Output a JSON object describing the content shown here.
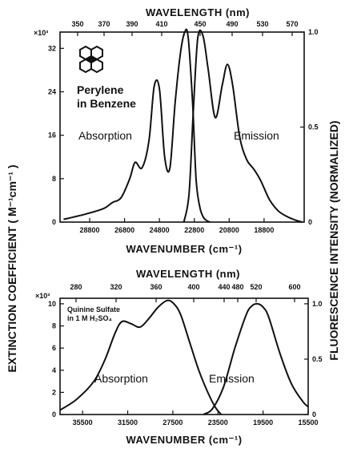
{
  "shared_labels": {
    "left_ylabel": "EXTINCTION  COEFFICIENT  ( M⁻¹cm⁻¹ )",
    "right_ylabel": "FLUORESCENCE  INTENSITY  (NORMALIZED)"
  },
  "chart_data": [
    {
      "type": "line",
      "top_xlabel": "WAVELENGTH (nm)",
      "xlabel": "WAVENUMBER (cm⁻¹)",
      "y_multiplier": "×10³",
      "xlim": [
        30500,
        16500
      ],
      "ylim_left": [
        0,
        35
      ],
      "ylim_right": [
        0,
        1.0
      ],
      "x_ticks": [
        28800,
        26800,
        24800,
        22800,
        20800,
        18800
      ],
      "top_ticks": [
        "350",
        "370",
        "390",
        "410",
        "",
        "450",
        "490",
        "530",
        "570"
      ],
      "y_ticks_left": [
        0,
        8,
        16,
        24,
        32
      ],
      "y_ticks_right": [
        "0",
        "0.5",
        "1.0"
      ],
      "annotations": [
        "Perylene",
        "in Benzene",
        "Absorption",
        "Emission"
      ],
      "series": [
        {
          "name": "Absorption",
          "x": [
            30300,
            29000,
            28000,
            27500,
            27000,
            26500,
            26200,
            25800,
            25400,
            25100,
            24800,
            24500,
            24200,
            23900,
            23600,
            23350,
            23150,
            22900,
            22700,
            22500,
            22300,
            22100,
            21900
          ],
          "y": [
            0.5,
            1.5,
            2.5,
            3.6,
            4.5,
            8.0,
            11.0,
            10.0,
            15.0,
            25.0,
            24.5,
            12.0,
            10.0,
            22.0,
            31.0,
            35.0,
            34.0,
            22.0,
            8.0,
            3.0,
            1.0,
            0.3,
            0
          ]
        },
        {
          "name": "Emission",
          "x": [
            23400,
            23100,
            22850,
            22600,
            22300,
            22000,
            21600,
            21200,
            20900,
            20600,
            20200,
            19800,
            19400,
            19000,
            18500,
            18000,
            17500,
            17000,
            16600
          ],
          "y": [
            0,
            0.15,
            0.6,
            0.97,
            0.98,
            0.8,
            0.55,
            0.72,
            0.83,
            0.72,
            0.45,
            0.33,
            0.28,
            0.22,
            0.12,
            0.06,
            0.03,
            0.01,
            0
          ]
        }
      ]
    },
    {
      "type": "line",
      "top_xlabel": "WAVELENGTH (nm)",
      "xlabel": "WAVENUMBER (cm⁻¹)",
      "y_multiplier": "×10³",
      "xlim": [
        37500,
        15500
      ],
      "ylim_left": [
        0,
        10.5
      ],
      "ylim_right": [
        0,
        1.05
      ],
      "x_ticks": [
        35500,
        31500,
        27500,
        23500,
        19500,
        15500
      ],
      "top_ticks": [
        "280",
        "320",
        "360",
        "400",
        "440",
        "480",
        "520",
        "600"
      ],
      "y_ticks_left": [
        0,
        2,
        4,
        6,
        8,
        10
      ],
      "y_ticks_right": [
        "0",
        "0.5",
        "1.0"
      ],
      "annotations": [
        "Quinine Sulfate",
        "in 1 M H₂SO₄",
        "Absorption",
        "Emission"
      ],
      "series": [
        {
          "name": "Absorption",
          "x": [
            37500,
            36000,
            34500,
            33500,
            32600,
            32000,
            31200,
            30400,
            29600,
            28800,
            28000,
            27400,
            26800,
            26000,
            25200,
            24400,
            23700,
            23200
          ],
          "y": [
            0.4,
            1.4,
            3.0,
            5.0,
            7.4,
            8.4,
            8.2,
            7.9,
            8.7,
            9.7,
            10.3,
            10.0,
            9.0,
            6.5,
            4.0,
            2.0,
            0.6,
            0
          ]
        },
        {
          "name": "Emission",
          "x": [
            24800,
            24000,
            23000,
            22000,
            21000,
            20500,
            20000,
            19500,
            19000,
            18000,
            17000,
            16000,
            15500
          ],
          "y": [
            0,
            0.05,
            0.25,
            0.6,
            0.9,
            0.98,
            1.0,
            0.97,
            0.88,
            0.55,
            0.28,
            0.12,
            0.07
          ]
        }
      ]
    }
  ]
}
